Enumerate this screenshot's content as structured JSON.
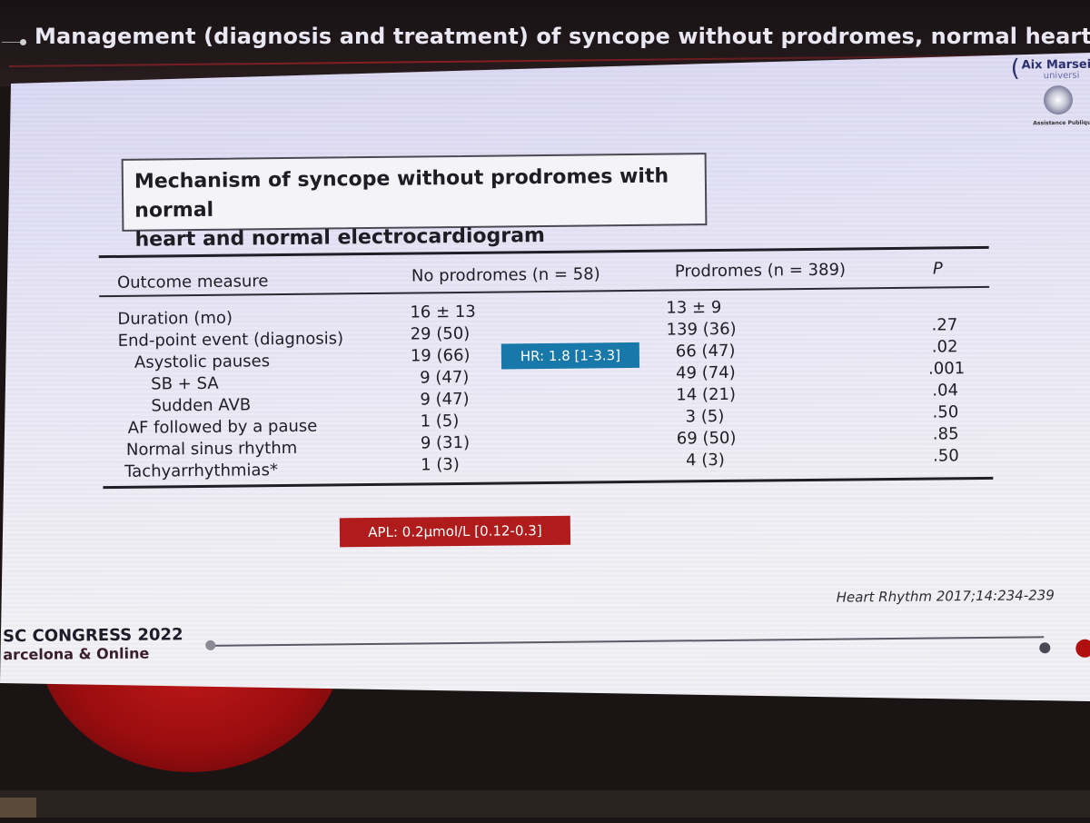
{
  "header": {
    "title": "Management (diagnosis and treatment) of syncope without prodromes, normal heart and"
  },
  "logo": {
    "name": "Aix Marseil",
    "sub": "universi",
    "institution": "Assistance Publique Hôpitaux de Marseill"
  },
  "slide": {
    "title_line1": "Mechanism of syncope without prodromes with normal",
    "title_line2": "heart and normal electrocardiogram"
  },
  "table": {
    "headers": [
      "Outcome measure",
      "No prodromes (n = 58)",
      "Prodromes (n = 389)",
      "P"
    ],
    "rows": [
      {
        "measure": "Duration (mo)",
        "no_prodromes": "16 ± 13",
        "prodromes": "13 ± 9",
        "p": ""
      },
      {
        "measure": "End-point event (diagnosis)",
        "no_prodromes": "29 (50)",
        "prodromes": "139 (36)",
        "p": ".27"
      },
      {
        "measure": "Asystolic pauses",
        "no_prodromes": "19 (66)",
        "prodromes": "66 (47)",
        "p": ".02"
      },
      {
        "measure": "SB + SA",
        "no_prodromes": "9 (47)",
        "prodromes": "49 (74)",
        "p": ".001"
      },
      {
        "measure": "Sudden AVB",
        "no_prodromes": "9 (47)",
        "prodromes": "14 (21)",
        "p": ".04"
      },
      {
        "measure": "AF followed by a pause",
        "no_prodromes": "1 (5)",
        "prodromes": "3 (5)",
        "p": ".50"
      },
      {
        "measure": "Normal sinus rhythm",
        "no_prodromes": "9 (31)",
        "prodromes": "69 (50)",
        "p": ".85"
      },
      {
        "measure": "Tachyarrhythmias*",
        "no_prodromes": "1 (3)",
        "prodromes": "4 (3)",
        "p": ".50"
      }
    ]
  },
  "badges": {
    "hr": "HR: 1.8 [1-3.3]",
    "apl": "APL: 0.2µmol/L [0.12-0.3]"
  },
  "citation": "Heart Rhythm 2017;14:234-239",
  "footer": {
    "congress": "SC CONGRESS 2022",
    "location": "arcelona & Online"
  },
  "colors": {
    "hr_badge": "#1878aa",
    "apl_badge": "#b01c1c",
    "progress_active": "#b01010"
  }
}
